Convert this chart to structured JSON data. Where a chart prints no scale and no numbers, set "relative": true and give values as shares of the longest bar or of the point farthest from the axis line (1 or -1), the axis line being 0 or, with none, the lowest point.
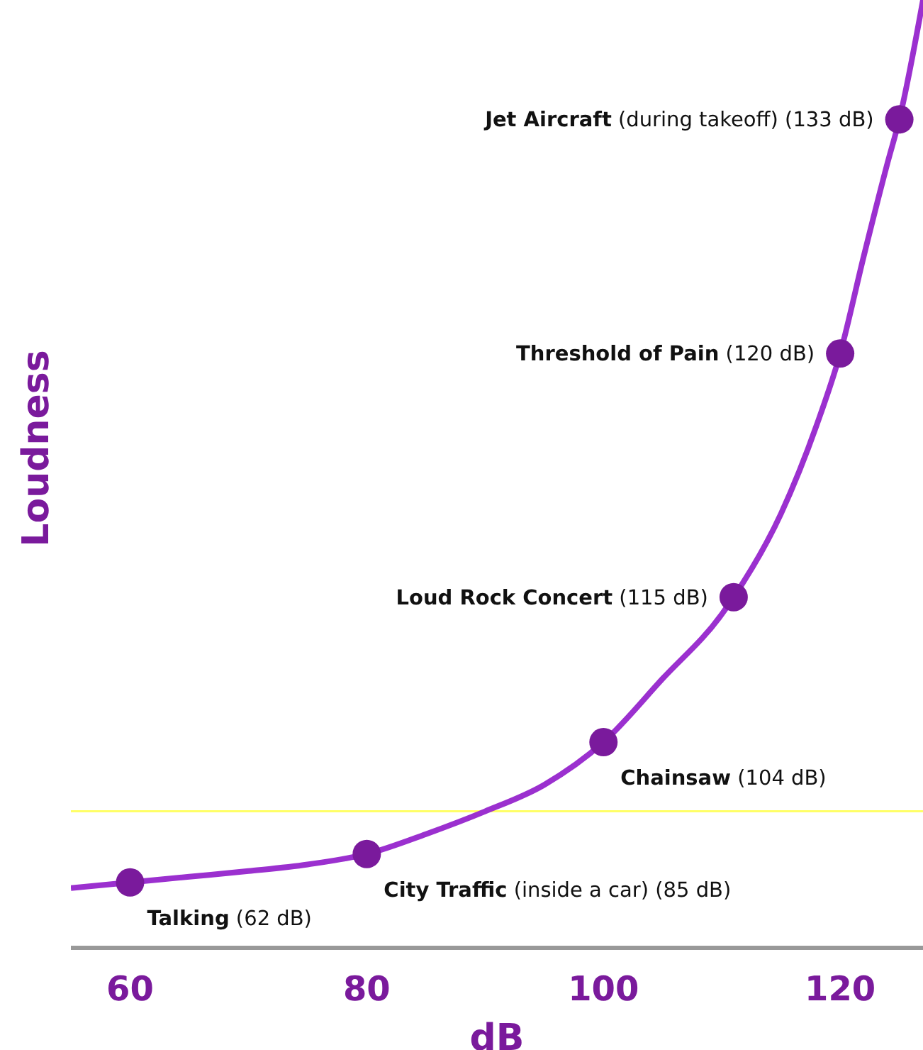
{
  "chart_data": {
    "type": "line",
    "xlabel": "dB",
    "ylabel": "Loudness",
    "relative": true,
    "xlim": [
      55,
      127
    ],
    "xticks": [
      60,
      80,
      100,
      120
    ],
    "series": [
      {
        "color": "#9b30cf",
        "x": [
          55,
          60,
          65,
          70,
          75,
          80,
          85,
          90,
          95,
          100,
          105,
          110,
          111,
          115,
          118,
          120,
          122,
          124,
          125,
          127
        ],
        "values": [
          0.063,
          0.069,
          0.075,
          0.081,
          0.088,
          0.099,
          0.12,
          0.144,
          0.172,
          0.217,
          0.284,
          0.352,
          0.37,
          0.458,
          0.551,
          0.627,
          0.73,
          0.828,
          0.874,
          1
        ]
      },
      {
        "type": "scatter",
        "marker": "circle",
        "color": "#7a1a9c",
        "x": [
          60,
          80,
          100,
          111,
          120,
          125
        ],
        "values": [
          0.069,
          0.099,
          0.217,
          0.37,
          0.627,
          0.874
        ]
      }
    ],
    "annotations": [
      {
        "text": "Talking (62 dB)",
        "x": 60,
        "y": 0.069
      },
      {
        "text": "City Traffic (inside a car) (85 dB)",
        "x": 80,
        "y": 0.099
      },
      {
        "text": "Chainsaw (104 dB)",
        "x": 100,
        "y": 0.217
      },
      {
        "text": "Loud Rock Concert (115 dB)",
        "x": 111,
        "y": 0.37
      },
      {
        "text": "Threshold of Pain (120 dB)",
        "x": 120,
        "y": 0.627
      },
      {
        "text": "Jet Aircraft (during takeoff) (133 dB)",
        "x": 125,
        "y": 0.874
      }
    ],
    "ref_lines": [
      {
        "axis": "y",
        "value": 0.144,
        "color": "#ffff66"
      }
    ]
  }
}
